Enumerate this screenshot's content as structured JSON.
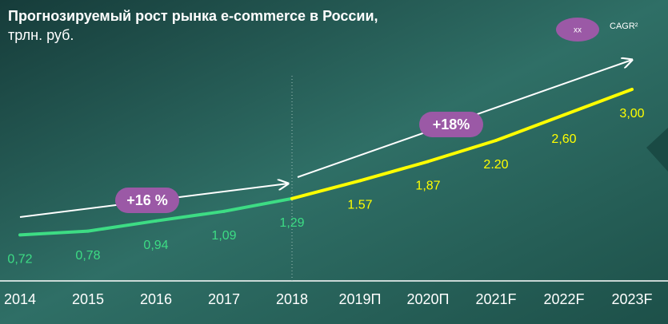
{
  "chart_data": {
    "type": "line",
    "title": "Прогнозируемый рост рынка e-commerce в России,",
    "subtitle": "трлн. руб.",
    "categories": [
      "2014",
      "2015",
      "2016",
      "2017",
      "2018",
      "2019П",
      "2020П",
      "2021F",
      "2022F",
      "2023F"
    ],
    "values": [
      0.72,
      0.78,
      0.94,
      1.09,
      1.29,
      1.57,
      1.87,
      2.2,
      2.6,
      3.0
    ],
    "value_labels": [
      "0,72",
      "0,78",
      "0,94",
      "1,09",
      "1,29",
      "1.57",
      "1,87",
      "2.20",
      "2,60",
      "3,00"
    ],
    "point_colors": [
      "#3ddc84",
      "#3ddc84",
      "#3ddc84",
      "#3ddc84",
      "#3ddc84",
      "#ffff00",
      "#ffff00",
      "#ffff00",
      "#ffff00",
      "#ffff00"
    ],
    "ylim": [
      0,
      4.4
    ],
    "annotations": [
      "+16 %",
      "+18%"
    ],
    "legend": {
      "marker": "xx",
      "label": "CAGR²"
    }
  }
}
